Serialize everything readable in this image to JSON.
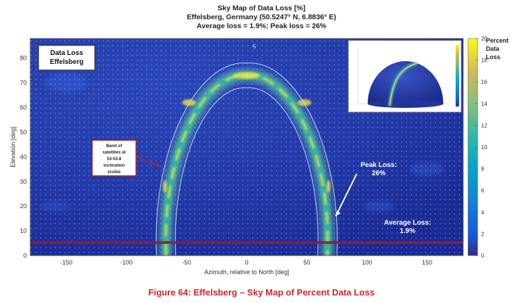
{
  "chart_data": {
    "type": "heatmap",
    "title": "Sky Map of Data Loss [%]",
    "subtitle": "Effelsberg, Germany (50.5247° N, 6.8836° E)",
    "summary": "Average loss = 1.9%;  Peak loss = 26%",
    "xlabel": "Azimuth, relative to North [deg]",
    "ylabel": "Elevation [deg]",
    "xlim": [
      -180,
      180
    ],
    "ylim": [
      0,
      88
    ],
    "xticks": [
      -150,
      -100,
      -50,
      0,
      50,
      100,
      150
    ],
    "yticks": [
      0,
      10,
      20,
      30,
      40,
      50,
      60,
      70,
      80
    ],
    "colorbar": {
      "label": "Percent\nData\nLoss",
      "label_lines": [
        "Percent",
        "Data",
        "Loss"
      ],
      "range": [
        0,
        20
      ],
      "ticks": [
        0,
        2,
        4,
        6,
        8,
        10,
        12,
        14,
        16,
        18,
        20
      ],
      "colormap": "parula"
    },
    "contour_labels": [
      {
        "x": 5,
        "y": 84,
        "text": "5"
      }
    ],
    "band": {
      "description_lines": [
        "Band of",
        "satellites  at",
        "53-53.8",
        "inclination",
        "visible"
      ],
      "left_azimuth_at_horizon": -67,
      "right_azimuth_at_horizon": 67,
      "peak_elevation": 73
    },
    "annotations": {
      "box_label": [
        "Data Loss",
        "Effelsberg"
      ],
      "peak_loss": [
        "Peak Loss:",
        "26%"
      ],
      "average_loss": [
        "Average Loss:",
        "1.9%"
      ]
    },
    "horizon_line_elevation": 5,
    "average_loss_pct": 1.9,
    "peak_loss_pct": 26
  },
  "figure_caption": "Figure 64: Effelsberg – Sky Map of Percent Data Loss"
}
